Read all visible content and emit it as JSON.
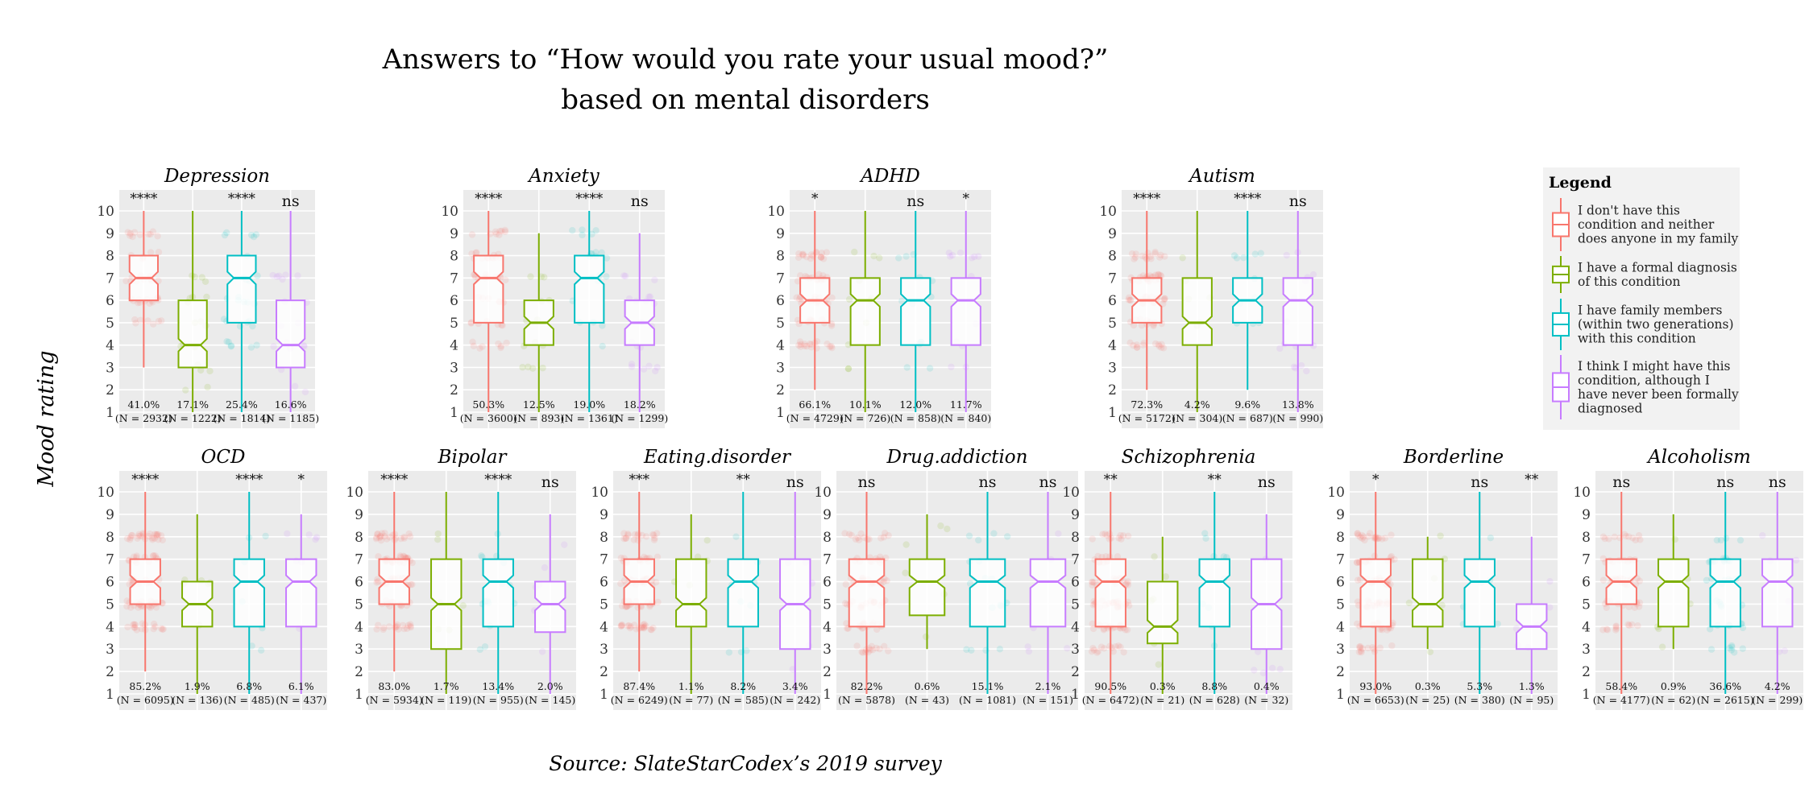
{
  "chart_data": {
    "type": "boxplot",
    "title": "Answers to “How would you rate your usual mood?”",
    "subtitle": "based on mental disorders",
    "ylabel": "Mood rating",
    "ylim": [
      1,
      10
    ],
    "yticks": [
      "1",
      "2",
      "3",
      "4",
      "5",
      "6",
      "7",
      "8",
      "9",
      "10"
    ],
    "caption": "Source: SlateStarCodex’s 2019 survey",
    "legend": {
      "title": "Legend",
      "position": "right",
      "entries": [
        {
          "label": "I don't have this condition and neither does anyone in my family",
          "color": "#F8766D",
          "lines": [
            "I don't have this",
            "condition and neither",
            "does anyone in my family"
          ]
        },
        {
          "label": "I have a formal diagnosis of this condition",
          "color": "#7CAE00",
          "lines": [
            "I have a formal diagnosis",
            "of this condition"
          ]
        },
        {
          "label": "I have family members (within two generations) with this condition",
          "color": "#00BFC4",
          "lines": [
            "I have family members",
            "(within two generations)",
            "with this condition"
          ]
        },
        {
          "label": "I think I might have this condition, although I have never been formally diagnosed",
          "color": "#C77CFF",
          "lines": [
            "I think I might have this",
            "condition, although I",
            "have never been formally",
            "diagnosed"
          ]
        }
      ]
    },
    "panels": [
      {
        "name": "Depression",
        "sig": [
          "****",
          "",
          "****",
          "ns"
        ],
        "groups": [
          {
            "pct": "41.0%",
            "n": "(N = 2932)",
            "min": 3,
            "q1": 6,
            "median": 7,
            "q3": 8,
            "max": 10
          },
          {
            "pct": "17.1%",
            "n": "(N = 1222)",
            "min": 1,
            "q1": 3,
            "median": 4,
            "q3": 6,
            "max": 10
          },
          {
            "pct": "25.4%",
            "n": "(N = 1814)",
            "min": 1,
            "q1": 5,
            "median": 7,
            "q3": 8,
            "max": 10
          },
          {
            "pct": "16.6%",
            "n": "(N = 1185)",
            "min": 1,
            "q1": 3,
            "median": 4,
            "q3": 6,
            "max": 10
          }
        ]
      },
      {
        "name": "Anxiety",
        "sig": [
          "****",
          "",
          "****",
          "ns"
        ],
        "groups": [
          {
            "pct": "50.3%",
            "n": "(N = 3600)",
            "min": 1,
            "q1": 5,
            "median": 7,
            "q3": 8,
            "max": 10
          },
          {
            "pct": "12.5%",
            "n": "(N = 893)",
            "min": 1,
            "q1": 4,
            "median": 5,
            "q3": 6,
            "max": 9
          },
          {
            "pct": "19.0%",
            "n": "(N = 1361)",
            "min": 1,
            "q1": 5,
            "median": 7,
            "q3": 8,
            "max": 10
          },
          {
            "pct": "18.2%",
            "n": "(N = 1299)",
            "min": 1,
            "q1": 4,
            "median": 5,
            "q3": 6,
            "max": 9
          }
        ]
      },
      {
        "name": "ADHD",
        "sig": [
          "*",
          "",
          "ns",
          "*"
        ],
        "groups": [
          {
            "pct": "66.1%",
            "n": "(N = 4729)",
            "min": 2,
            "q1": 5,
            "median": 6,
            "q3": 7,
            "max": 10
          },
          {
            "pct": "10.1%",
            "n": "(N = 726)",
            "min": 1,
            "q1": 4,
            "median": 6,
            "q3": 7,
            "max": 10
          },
          {
            "pct": "12.0%",
            "n": "(N = 858)",
            "min": 1,
            "q1": 4,
            "median": 6,
            "q3": 7,
            "max": 10
          },
          {
            "pct": "11.7%",
            "n": "(N = 840)",
            "min": 1,
            "q1": 4,
            "median": 6,
            "q3": 7,
            "max": 10
          }
        ]
      },
      {
        "name": "Autism",
        "sig": [
          "****",
          "",
          "****",
          "ns"
        ],
        "groups": [
          {
            "pct": "72.3%",
            "n": "(N = 5172)",
            "min": 2,
            "q1": 5,
            "median": 6,
            "q3": 7,
            "max": 10
          },
          {
            "pct": "4.2%",
            "n": "(N = 304)",
            "min": 1,
            "q1": 4,
            "median": 5,
            "q3": 7,
            "max": 10
          },
          {
            "pct": "9.6%",
            "n": "(N = 687)",
            "min": 2,
            "q1": 5,
            "median": 6,
            "q3": 7,
            "max": 10
          },
          {
            "pct": "13.8%",
            "n": "(N = 990)",
            "min": 1,
            "q1": 4,
            "median": 6,
            "q3": 7,
            "max": 10
          }
        ]
      },
      {
        "name": "OCD",
        "sig": [
          "****",
          "",
          "****",
          "*"
        ],
        "groups": [
          {
            "pct": "85.2%",
            "n": "(N = 6095)",
            "min": 2,
            "q1": 5,
            "median": 6,
            "q3": 7,
            "max": 10
          },
          {
            "pct": "1.9%",
            "n": "(N = 136)",
            "min": 1,
            "q1": 4,
            "median": 5,
            "q3": 6,
            "max": 9
          },
          {
            "pct": "6.8%",
            "n": "(N = 485)",
            "min": 1,
            "q1": 4,
            "median": 6,
            "q3": 7,
            "max": 10
          },
          {
            "pct": "6.1%",
            "n": "(N = 437)",
            "min": 1,
            "q1": 4,
            "median": 6,
            "q3": 7,
            "max": 9
          }
        ]
      },
      {
        "name": "Bipolar",
        "sig": [
          "****",
          "",
          "****",
          "ns"
        ],
        "groups": [
          {
            "pct": "83.0%",
            "n": "(N = 5934)",
            "min": 2,
            "q1": 5,
            "median": 6,
            "q3": 7,
            "max": 10
          },
          {
            "pct": "1.7%",
            "n": "(N = 119)",
            "min": 1,
            "q1": 3,
            "median": 5,
            "q3": 7,
            "max": 10
          },
          {
            "pct": "13.4%",
            "n": "(N = 955)",
            "min": 1,
            "q1": 4,
            "median": 6,
            "q3": 7,
            "max": 10
          },
          {
            "pct": "2.0%",
            "n": "(N = 145)",
            "min": 1,
            "q1": 3.75,
            "median": 5,
            "q3": 6,
            "max": 9
          }
        ]
      },
      {
        "name": "Eating.disorder",
        "sig": [
          "***",
          "",
          "**",
          "ns"
        ],
        "groups": [
          {
            "pct": "87.4%",
            "n": "(N = 6249)",
            "min": 2,
            "q1": 5,
            "median": 6,
            "q3": 7,
            "max": 10
          },
          {
            "pct": "1.1%",
            "n": "(N = 77)",
            "min": 1,
            "q1": 4,
            "median": 5,
            "q3": 7,
            "max": 9
          },
          {
            "pct": "8.2%",
            "n": "(N = 585)",
            "min": 1,
            "q1": 4,
            "median": 6,
            "q3": 7,
            "max": 10
          },
          {
            "pct": "3.4%",
            "n": "(N = 242)",
            "min": 1,
            "q1": 3,
            "median": 5,
            "q3": 7,
            "max": 10
          }
        ]
      },
      {
        "name": "Drug.addiction",
        "sig": [
          "ns",
          "",
          "ns",
          "ns"
        ],
        "groups": [
          {
            "pct": "82.2%",
            "n": "(N = 5878)",
            "min": 1,
            "q1": 4,
            "median": 6,
            "q3": 7,
            "max": 10
          },
          {
            "pct": "0.6%",
            "n": "(N = 43)",
            "min": 3,
            "q1": 4.5,
            "median": 6,
            "q3": 7,
            "max": 9
          },
          {
            "pct": "15.1%",
            "n": "(N = 1081)",
            "min": 1,
            "q1": 4,
            "median": 6,
            "q3": 7,
            "max": 10
          },
          {
            "pct": "2.1%",
            "n": "(N = 151)",
            "min": 1,
            "q1": 4,
            "median": 6,
            "q3": 7,
            "max": 10
          }
        ]
      },
      {
        "name": "Schizophrenia",
        "sig": [
          "**",
          "",
          "**",
          "ns"
        ],
        "groups": [
          {
            "pct": "90.5%",
            "n": "(N = 6472)",
            "min": 1,
            "q1": 4,
            "median": 6,
            "q3": 7,
            "max": 10
          },
          {
            "pct": "0.3%",
            "n": "(N = 21)",
            "min": 1,
            "q1": 3.25,
            "median": 4,
            "q3": 6,
            "max": 8
          },
          {
            "pct": "8.8%",
            "n": "(N = 628)",
            "min": 1,
            "q1": 4,
            "median": 6,
            "q3": 7,
            "max": 10
          },
          {
            "pct": "0.4%",
            "n": "(N = 32)",
            "min": 1,
            "q1": 3,
            "median": 5,
            "q3": 7,
            "max": 9
          }
        ]
      },
      {
        "name": "Borderline",
        "sig": [
          "*",
          "",
          "ns",
          "**"
        ],
        "groups": [
          {
            "pct": "93.0%",
            "n": "(N = 6653)",
            "min": 1,
            "q1": 4,
            "median": 6,
            "q3": 7,
            "max": 10
          },
          {
            "pct": "0.3%",
            "n": "(N = 25)",
            "min": 3,
            "q1": 4,
            "median": 5,
            "q3": 7,
            "max": 8
          },
          {
            "pct": "5.3%",
            "n": "(N = 380)",
            "min": 1,
            "q1": 4,
            "median": 6,
            "q3": 7,
            "max": 10
          },
          {
            "pct": "1.3%",
            "n": "(N = 95)",
            "min": 1,
            "q1": 3,
            "median": 4,
            "q3": 5,
            "max": 8
          }
        ]
      },
      {
        "name": "Alcoholism",
        "sig": [
          "ns",
          "",
          "ns",
          "ns"
        ],
        "groups": [
          {
            "pct": "58.4%",
            "n": "(N = 4177)",
            "min": 1,
            "q1": 5,
            "median": 6,
            "q3": 7,
            "max": 10
          },
          {
            "pct": "0.9%",
            "n": "(N = 62)",
            "min": 3,
            "q1": 4,
            "median": 6,
            "q3": 7,
            "max": 9
          },
          {
            "pct": "36.6%",
            "n": "(N = 2615)",
            "min": 1,
            "q1": 4,
            "median": 6,
            "q3": 7,
            "max": 10
          },
          {
            "pct": "4.2%",
            "n": "(N = 299)",
            "min": 1,
            "q1": 4,
            "median": 6,
            "q3": 7,
            "max": 10
          }
        ]
      }
    ]
  }
}
